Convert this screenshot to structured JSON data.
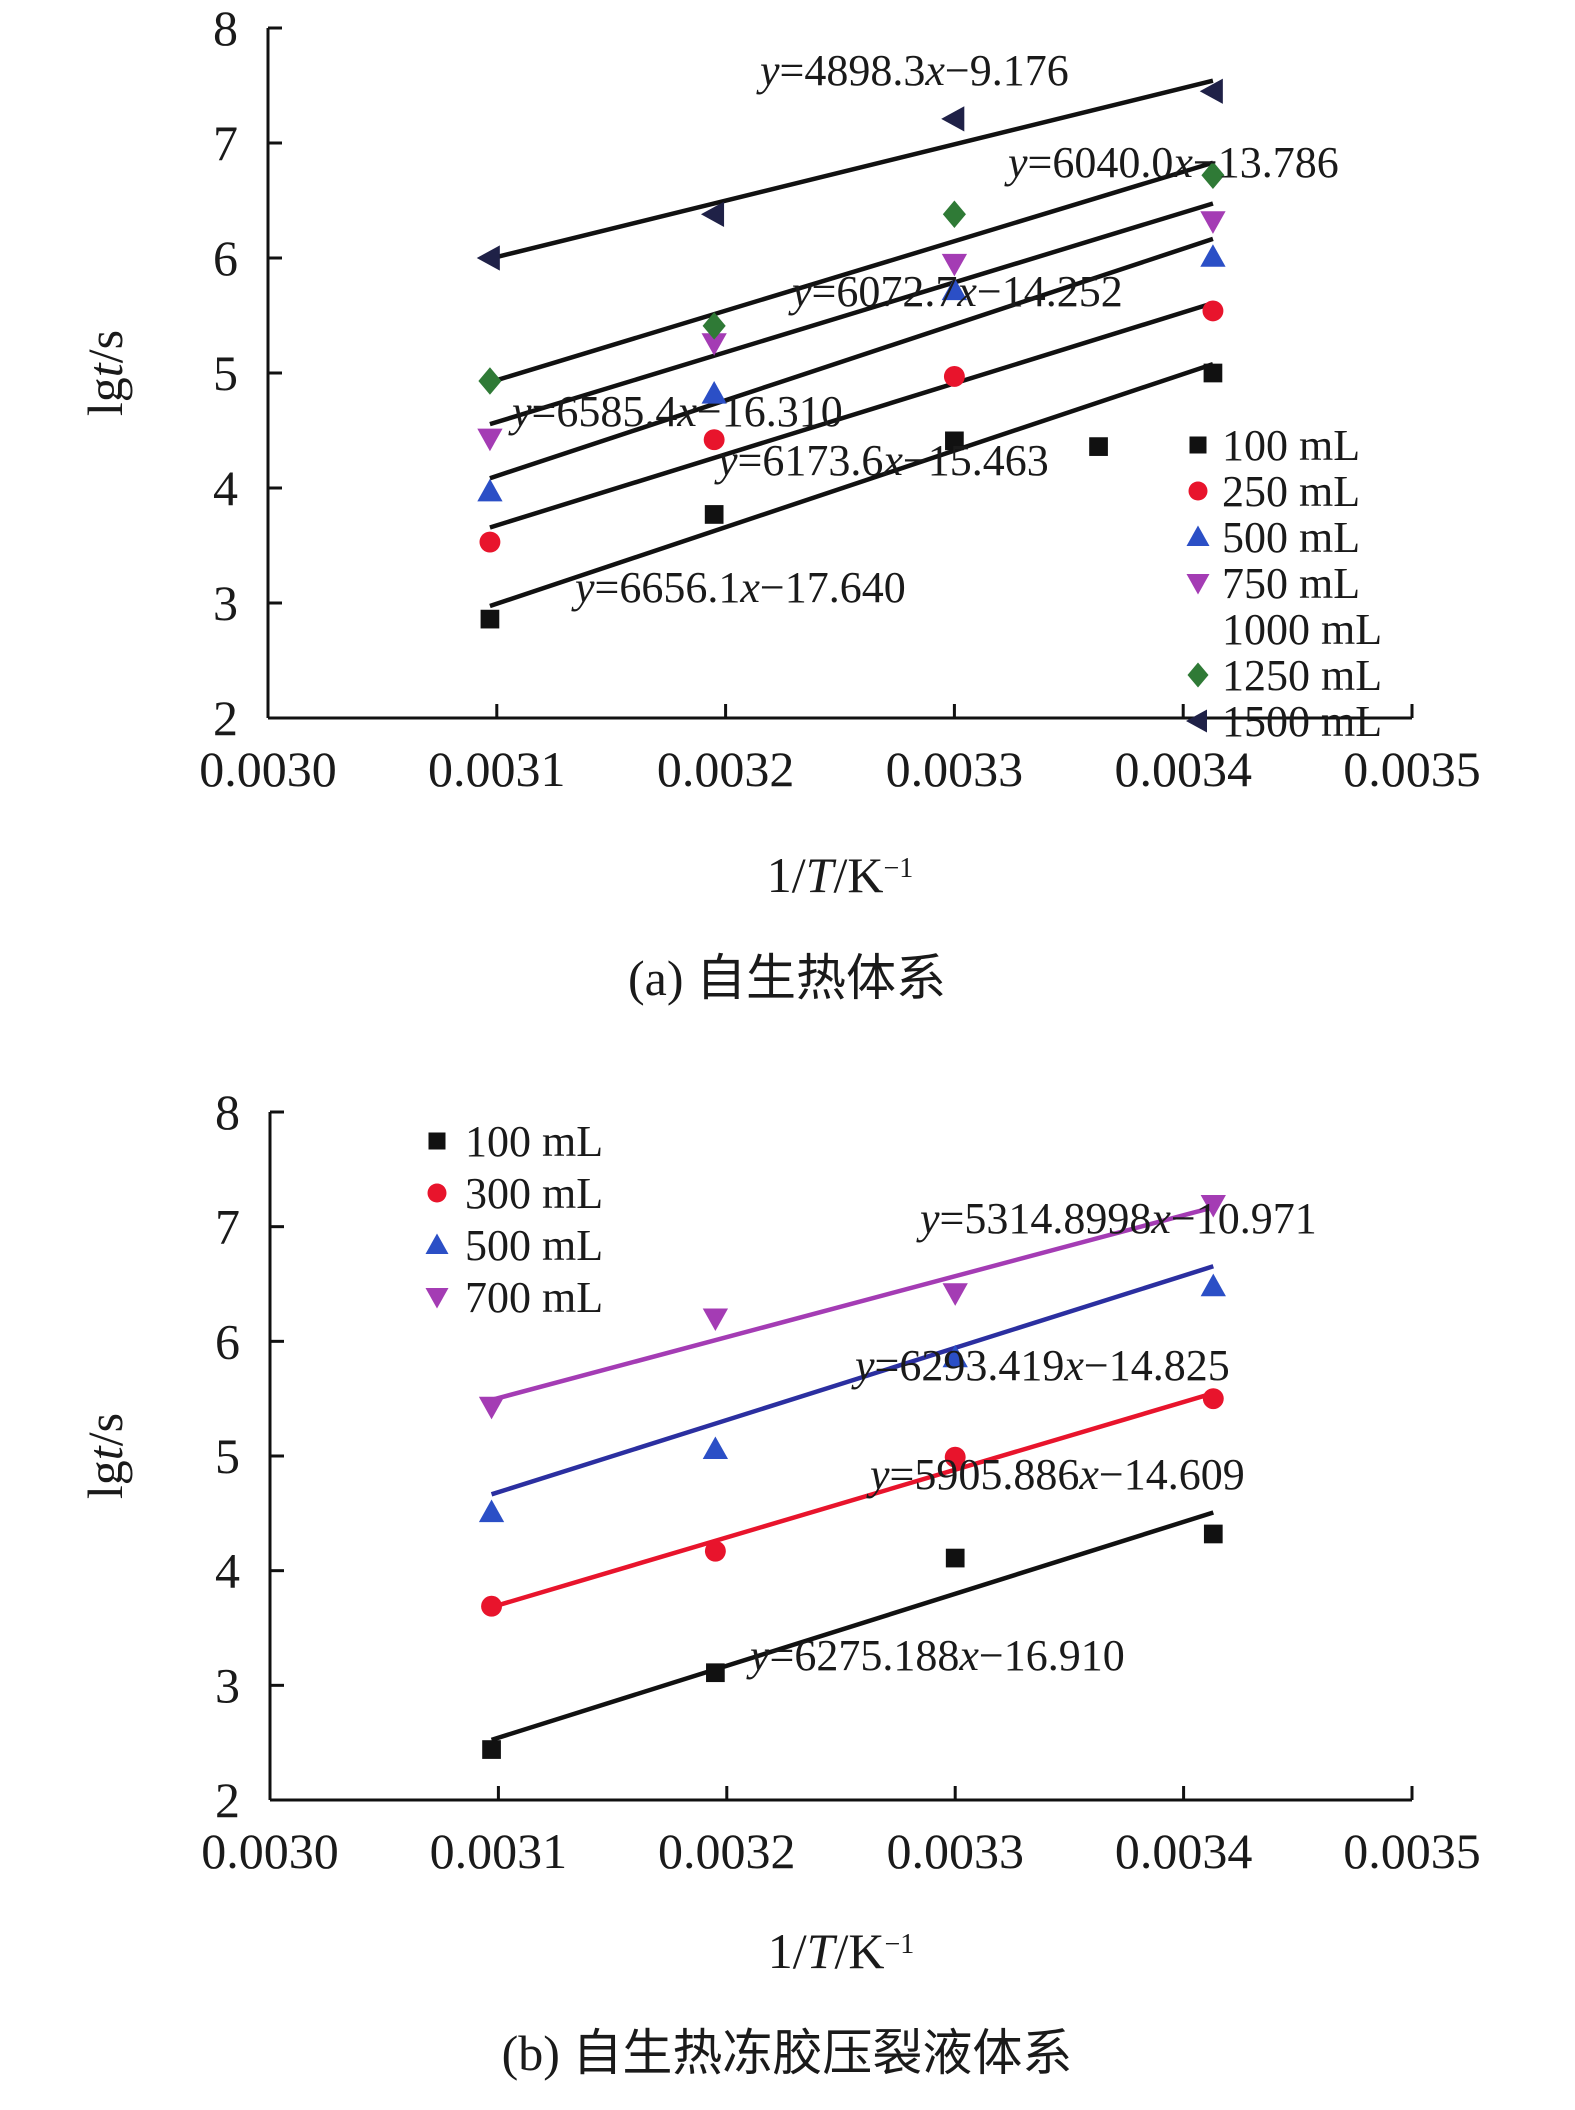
{
  "chart_data": [
    {
      "type": "scatter",
      "caption": "(a) 自生热体系",
      "xlabel_parts": [
        "1/",
        "T",
        "/K",
        "−1"
      ],
      "ylabel_parts": [
        "lg",
        "t",
        "/s"
      ],
      "xlim": [
        0.003,
        0.0035
      ],
      "ylim": [
        2,
        8
      ],
      "xticks": [
        "0.0030",
        "0.0031",
        "0.0032",
        "0.0033",
        "0.0034",
        "0.0035"
      ],
      "yticks": [
        "2",
        "3",
        "4",
        "5",
        "6",
        "7",
        "8"
      ],
      "legend_position": "bottom-right",
      "series": [
        {
          "name": "100 mL",
          "marker": "square",
          "color": "#111111",
          "line_color": "#111111",
          "x": [
            0.003097,
            0.003195,
            0.0033,
            0.003363,
            0.003413
          ],
          "y": [
            2.86,
            3.77,
            4.41,
            4.36,
            5.0
          ],
          "fit": {
            "slope": 6656.1,
            "intercept": -17.64,
            "label": "y=6656.1x−17.640"
          }
        },
        {
          "name": "250 mL",
          "marker": "circle",
          "color": "#e8142c",
          "line_color": "#111111",
          "x": [
            0.003097,
            0.003195,
            0.0033,
            0.003413
          ],
          "y": [
            3.53,
            4.42,
            4.97,
            5.54
          ],
          "fit": {
            "slope": 6173.6,
            "intercept": -15.463,
            "label": "y=6173.6x−15.463"
          }
        },
        {
          "name": "500 mL",
          "marker": "triangle-up",
          "color": "#2b4fc6",
          "line_color": "#111111",
          "x": [
            0.003097,
            0.003195,
            0.0033,
            0.003413
          ],
          "y": [
            3.97,
            4.82,
            5.72,
            6.01
          ],
          "fit": {
            "slope": 6585.4,
            "intercept": -16.31,
            "label": "y=6585.4x−16.310"
          }
        },
        {
          "name": "750 mL",
          "marker": "triangle-down",
          "color": "#a43cb4",
          "line_color": "#111111",
          "x": [
            0.003097,
            0.003195,
            0.0033,
            0.003413
          ],
          "y": [
            4.43,
            5.26,
            5.95,
            6.32
          ],
          "fit": {
            "slope": 6072.7,
            "intercept": -14.252,
            "label": "y=6072.7x−14.252"
          }
        },
        {
          "name": "1000 mL",
          "marker": "none",
          "color": "#111111",
          "line_color": "#111111",
          "x": [],
          "y": []
        },
        {
          "name": "1250 mL",
          "marker": "diamond",
          "color": "#2f7a36",
          "line_color": "#111111",
          "x": [
            0.003097,
            0.003195,
            0.0033,
            0.003413
          ],
          "y": [
            4.93,
            5.41,
            6.38,
            6.72
          ],
          "fit": {
            "slope": 6040.0,
            "intercept": -13.786,
            "label": "y=6040.0x−13.786"
          }
        },
        {
          "name": "1500 mL",
          "marker": "triangle-left",
          "color": "#1f2147",
          "line_color": "#111111",
          "x": [
            0.003097,
            0.003195,
            0.0033,
            0.003413
          ],
          "y": [
            6.0,
            6.38,
            7.21,
            7.45
          ],
          "fit": {
            "slope": 4898.3,
            "intercept": -9.176,
            "label": "y=4898.3x−9.176"
          }
        }
      ]
    },
    {
      "type": "scatter",
      "caption": "(b) 自生热冻胶压裂液体系",
      "xlabel_parts": [
        "1/",
        "T",
        "/K",
        "−1"
      ],
      "ylabel_parts": [
        "lg",
        "t",
        "/s"
      ],
      "xlim": [
        0.003,
        0.0035
      ],
      "ylim": [
        2,
        8
      ],
      "xticks": [
        "0.0030",
        "0.0031",
        "0.0032",
        "0.0033",
        "0.0034",
        "0.0035"
      ],
      "yticks": [
        "2",
        "3",
        "4",
        "5",
        "6",
        "7",
        "8"
      ],
      "legend_position": "top-left",
      "series": [
        {
          "name": "100 mL",
          "marker": "square",
          "color": "#111111",
          "line_color": "#111111",
          "x": [
            0.003097,
            0.003195,
            0.0033,
            0.003413
          ],
          "y": [
            2.44,
            3.11,
            4.11,
            4.32
          ],
          "fit": {
            "slope": 6275.188,
            "intercept": -16.91,
            "label": "y=6275.188x−16.910"
          }
        },
        {
          "name": "300 mL",
          "marker": "circle",
          "color": "#e8142c",
          "line_color": "#e8142c",
          "x": [
            0.003097,
            0.003195,
            0.0033,
            0.003413
          ],
          "y": [
            3.69,
            4.17,
            4.99,
            5.5
          ],
          "fit": {
            "slope": 5905.886,
            "intercept": -14.609,
            "label": "y=5905.886x−14.609"
          }
        },
        {
          "name": "500 mL",
          "marker": "triangle-up",
          "color": "#2b4fc6",
          "line_color": "#2b2fa0",
          "x": [
            0.003097,
            0.003195,
            0.0033,
            0.003413
          ],
          "y": [
            4.51,
            5.06,
            5.86,
            6.48
          ],
          "fit": {
            "slope": 6293.419,
            "intercept": -14.825,
            "label": "y=6293.419x−14.825"
          }
        },
        {
          "name": "700 mL",
          "marker": "triangle-down",
          "color": "#a43cb4",
          "line_color": "#a43cb4",
          "x": [
            0.003097,
            0.003195,
            0.0033,
            0.003413
          ],
          "y": [
            5.43,
            6.2,
            6.42,
            7.19
          ],
          "fit": {
            "slope": 5314.8998,
            "intercept": -10.971,
            "label": "y=5314.8998x−10.971"
          }
        }
      ]
    }
  ]
}
